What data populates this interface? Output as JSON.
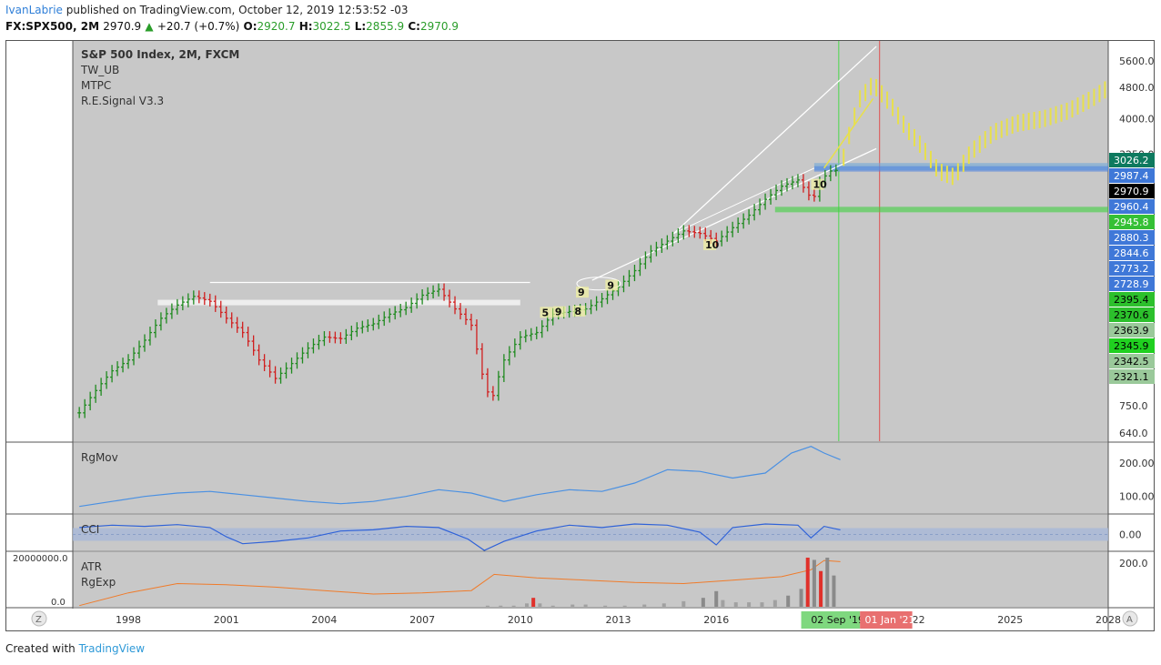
{
  "header": {
    "author": "IvanLabrie",
    "published": "published on TradingView.com, October 12, 2019 12:53:52 -03",
    "symbol": "FX:SPX500, 2M",
    "price": "2970.9",
    "change_arrow": "▲",
    "change": "+20.7 (+0.7%)",
    "o_label": "O:",
    "o": "2920.7",
    "h_label": "H:",
    "h": "3022.5",
    "l_label": "L:",
    "l": "2855.9",
    "c_label": "C:",
    "c": "2970.9"
  },
  "legend": {
    "title": "S&P 500 Index, 2M, FXCM",
    "ind1": "TW_UB",
    "ind2": "MTPC",
    "ind3": "R.E.Signal V3.3",
    "rgmov": "RgMov",
    "cci": "CCI",
    "atr": "ATR",
    "rgexp": "RgExp"
  },
  "footer": {
    "created": "Created with",
    "brand": "TradingView"
  },
  "colors": {
    "pane_bg": "#c8c8c8",
    "up_bar": "#1f8a1f",
    "down_bar": "#d11f1f",
    "projection": "#e8e04a",
    "rgmov_line": "#4a90e2",
    "cci_line": "#2f62d8",
    "atr_line": "#f07b2a",
    "green_vline": "#4cd84c",
    "red_vline": "#e05050"
  },
  "chart_data": [
    {
      "type": "line",
      "title": "S&P 500 Index, 2M, FXCM",
      "scale": "log",
      "x_ticks": [
        "1998",
        "2001",
        "2004",
        "2007",
        "2010",
        "2013",
        "2016",
        "2019",
        "2022",
        "2025",
        "2028"
      ],
      "x_range": [
        1996.3,
        2028
      ],
      "ylim": [
        620,
        6200
      ],
      "y_ticks": [
        "5600.0",
        "4800.0",
        "4000.0",
        "3250.0",
        "750.0",
        "640.0"
      ],
      "series": [
        {
          "x": [
            1996.5,
            1997.0,
            1997.5,
            1998.0,
            1998.5,
            1999.0,
            1999.5,
            2000.0,
            2000.5,
            2001.0,
            2001.5,
            2002.0,
            2002.5,
            2003.0,
            2003.5,
            2004.0,
            2004.5,
            2005.0,
            2005.5,
            2006.0,
            2006.5,
            2007.0,
            2007.5,
            2008.0,
            2008.5,
            2008.8,
            2009.1,
            2009.5,
            2010.0,
            2010.5,
            2011.0,
            2011.5,
            2012.0,
            2012.5,
            2013.0,
            2013.5,
            2014.0,
            2014.5,
            2015.0,
            2015.5,
            2016.0,
            2016.5,
            2017.0,
            2017.5,
            2018.0,
            2018.5,
            2018.95,
            2019.2,
            2019.5,
            2019.8
          ],
          "values": [
            720,
            820,
            920,
            980,
            1100,
            1250,
            1350,
            1420,
            1380,
            1250,
            1150,
            980,
            880,
            960,
            1050,
            1120,
            1110,
            1180,
            1210,
            1280,
            1330,
            1430,
            1480,
            1320,
            1200,
            920,
            760,
            980,
            1120,
            1150,
            1280,
            1300,
            1320,
            1400,
            1500,
            1650,
            1850,
            1960,
            2080,
            2050,
            1960,
            2120,
            2280,
            2500,
            2700,
            2800,
            2480,
            2800,
            2950,
            2970
          ]
        }
      ],
      "projection": {
        "x": [
          2019.9,
          2020.4,
          2020.8,
          2021.3,
          2021.8,
          2022.3,
          2022.8,
          2023.3,
          2023.8,
          2024.5,
          2025.2,
          2026.0,
          2026.8,
          2027.5,
          2028.0
        ],
        "values": [
          3200,
          4500,
          4900,
          4400,
          3800,
          3400,
          2950,
          2850,
          3300,
          3700,
          3900,
          4000,
          4200,
          4500,
          4800
        ]
      },
      "price_labels": [
        "3026.2",
        "2987.4",
        "2970.9",
        "2960.4",
        "2945.8",
        "2880.3",
        "2844.6",
        "2773.2",
        "2728.9",
        "2395.4",
        "2370.6",
        "2363.9",
        "2345.9",
        "2342.5",
        "2321.1"
      ],
      "count_labels": [
        "5",
        "9",
        "8",
        "9",
        "9",
        "10",
        "10"
      ],
      "time_markers": [
        "02 Sep '19",
        "01 Jan '21"
      ]
    },
    {
      "type": "line",
      "title": "RgMov",
      "y_ticks": [
        "200.00",
        "100.00"
      ],
      "ylim": [
        50,
        260
      ],
      "series": [
        {
          "x": [
            1996.5,
            1997.5,
            1998.5,
            1999.5,
            2000.5,
            2001.5,
            2002.5,
            2003.5,
            2004.5,
            2005.5,
            2006.5,
            2007.5,
            2008.5,
            2009.5,
            2010.5,
            2011.5,
            2012.5,
            2013.5,
            2014.5,
            2015.5,
            2016.5,
            2017.5,
            2018.3,
            2018.9,
            2019.3,
            2019.8
          ],
          "values": [
            70,
            85,
            100,
            110,
            115,
            105,
            95,
            85,
            78,
            85,
            100,
            120,
            110,
            85,
            105,
            120,
            115,
            140,
            180,
            175,
            155,
            170,
            230,
            250,
            230,
            210
          ]
        }
      ]
    },
    {
      "type": "line",
      "title": "CCI",
      "y_ticks": [
        "0.00"
      ],
      "series": [
        {
          "x": [
            1996.5,
            1997.5,
            1998.5,
            1999.5,
            2000.5,
            2001.0,
            2001.5,
            2002.5,
            2003.5,
            2004.5,
            2005.5,
            2006.5,
            2007.5,
            2008.4,
            2008.9,
            2009.5,
            2010.5,
            2011.5,
            2012.5,
            2013.5,
            2014.5,
            2015.5,
            2016.0,
            2016.5,
            2017.5,
            2018.5,
            2018.9,
            2019.3,
            2019.8
          ],
          "values": [
            60,
            80,
            70,
            85,
            60,
            -20,
            -80,
            -60,
            -30,
            30,
            40,
            70,
            60,
            -40,
            -150,
            -60,
            30,
            80,
            60,
            90,
            80,
            20,
            -90,
            60,
            90,
            80,
            -30,
            70,
            40
          ]
        }
      ]
    },
    {
      "type": "bar",
      "title": "ATR",
      "y_ticks_left": [
        "20000000.0",
        "0.0"
      ],
      "y_ticks_right": [
        "200.0"
      ],
      "atr_line": {
        "x": [
          1996.5,
          1998.0,
          1999.5,
          2001.0,
          2002.5,
          2004.0,
          2005.5,
          2007.0,
          2008.5,
          2009.2,
          2010.5,
          2012.0,
          2013.5,
          2015.0,
          2016.5,
          2018.0,
          2018.9,
          2019.3,
          2019.8
        ],
        "values": [
          5,
          60,
          100,
          95,
          85,
          70,
          55,
          60,
          70,
          140,
          125,
          115,
          105,
          100,
          115,
          130,
          160,
          200,
          195
        ]
      },
      "volume_bars": {
        "x": [
          2009.0,
          2009.4,
          2009.8,
          2010.2,
          2010.4,
          2010.6,
          2011.0,
          2011.6,
          2012.0,
          2012.6,
          2013.2,
          2013.8,
          2014.4,
          2015.0,
          2015.6,
          2016.0,
          2016.2,
          2016.6,
          2017.0,
          2017.4,
          2017.8,
          2018.2,
          2018.6,
          2018.8,
          2019.0,
          2019.2,
          2019.4,
          2019.6
        ],
        "values": [
          0.5,
          0.5,
          0.5,
          1.5,
          4,
          1.5,
          0.5,
          1,
          1,
          0.5,
          0.5,
          1,
          1.5,
          2.5,
          4,
          7,
          3,
          2,
          2,
          2,
          3,
          5,
          8,
          22,
          21,
          16,
          22,
          14
        ],
        "red_index": [
          4,
          23,
          25
        ]
      }
    }
  ]
}
